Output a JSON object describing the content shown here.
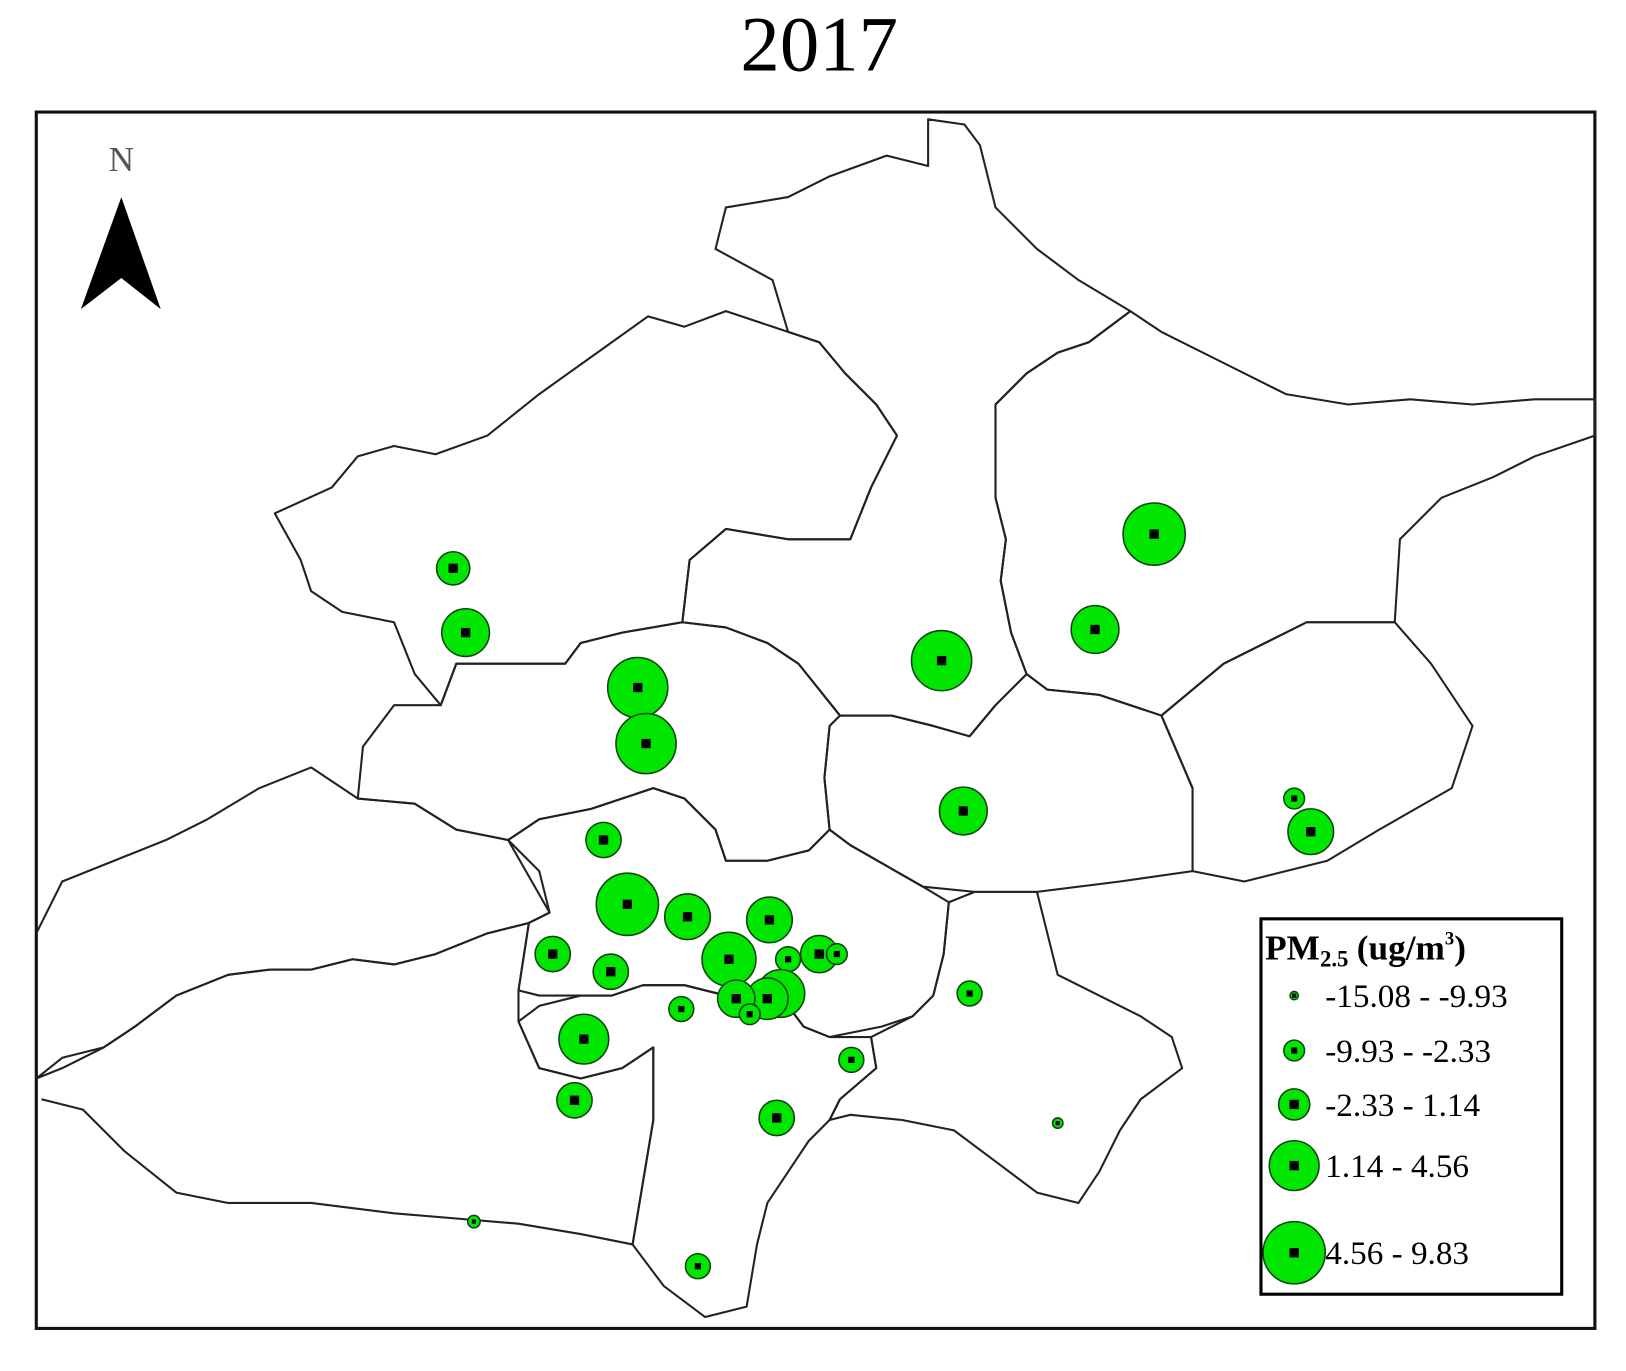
{
  "title": "2017",
  "north_label": "N",
  "legend": {
    "title": {
      "main": "PM",
      "subscript": "2.5",
      "unit": "(ug/m",
      "superscript": "3",
      "close": ")"
    },
    "items": [
      "-15.08 - -9.93",
      "-9.93 - -2.33",
      "-2.33 - 1.14",
      "1.14 - 4.56",
      "4.56 - 9.83"
    ]
  }
}
